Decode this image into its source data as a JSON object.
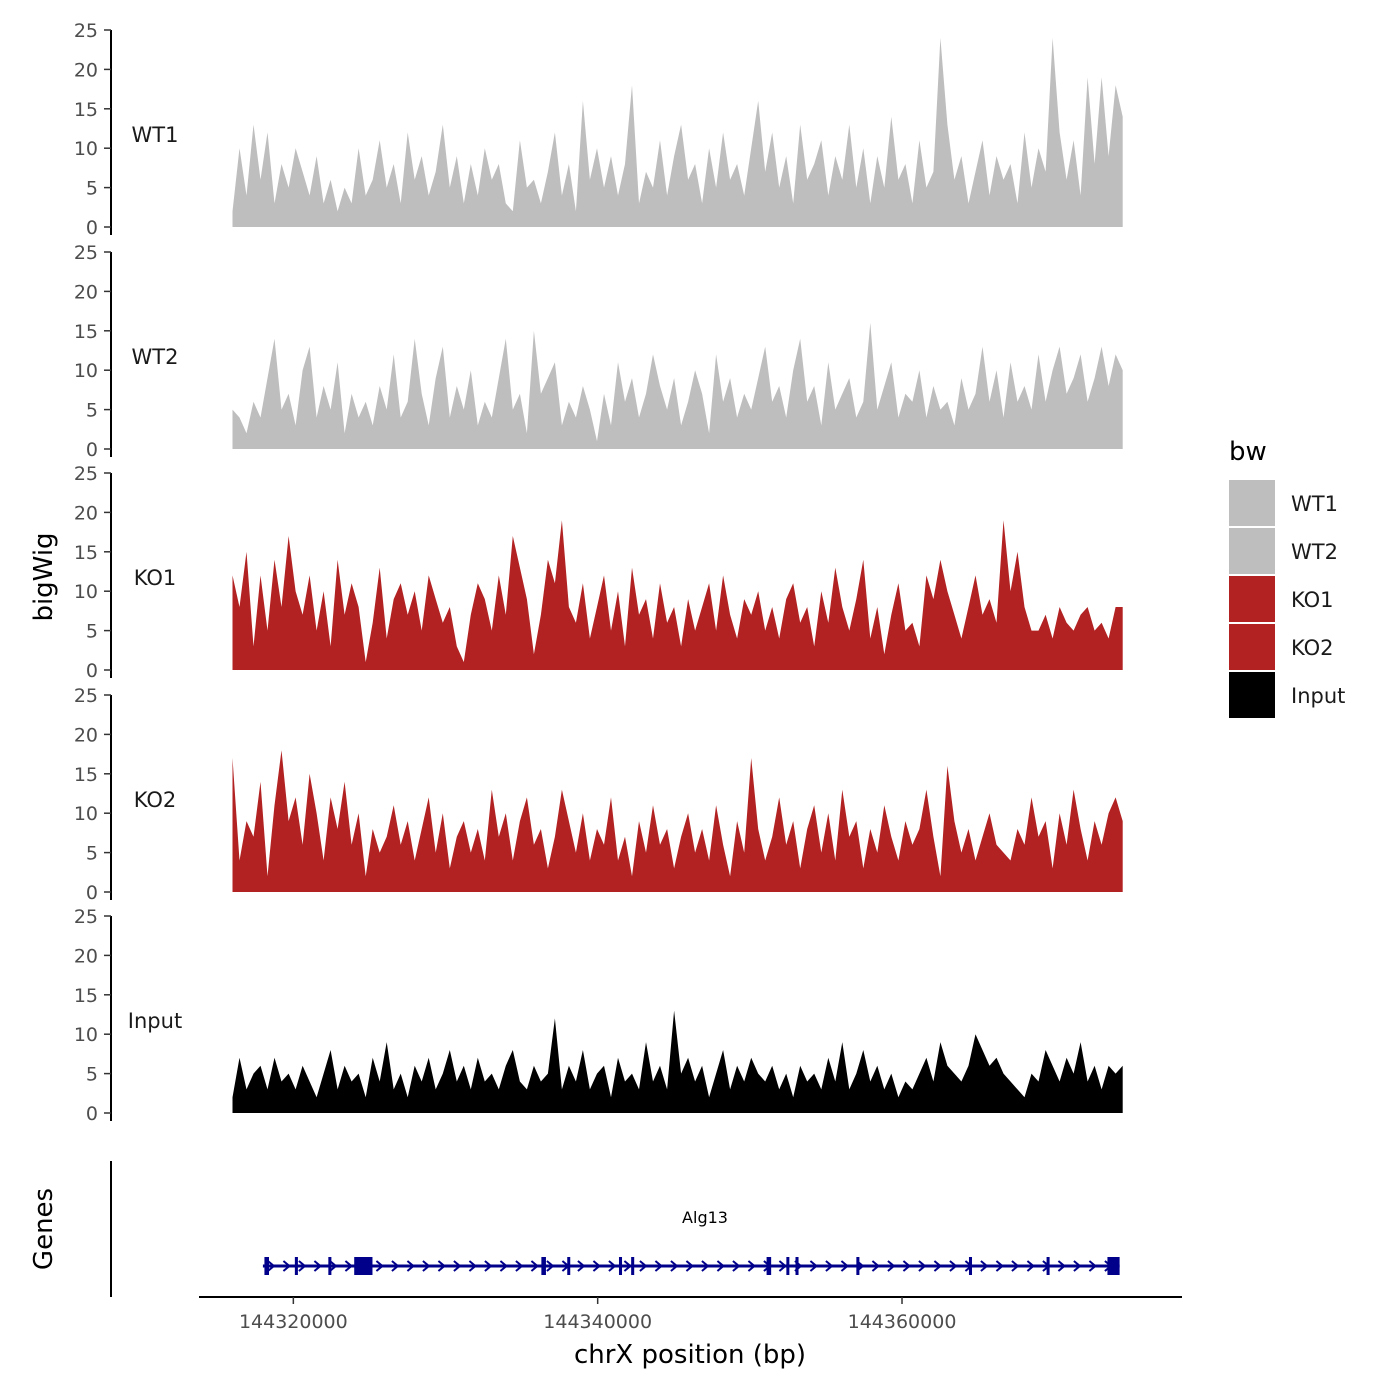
{
  "chart_data": {
    "type": "area",
    "title": "",
    "xlabel": "chrX position (bp)",
    "ylabel": "bigWig",
    "genes_label": "Genes",
    "xlim": [
      144313800,
      144378400
    ],
    "x_ticks": [
      144320000,
      144340000,
      144360000
    ],
    "x_tick_labels": [
      "144320000",
      "144340000",
      "144360000"
    ],
    "data_range": [
      144316000,
      144374500
    ],
    "ylim": [
      0,
      25
    ],
    "y_ticks": [
      0,
      5,
      10,
      15,
      20,
      25
    ],
    "y_tick_labels": [
      "0",
      "5",
      "10",
      "15",
      "20",
      "25"
    ],
    "legend": {
      "title": "bw",
      "entries": [
        {
          "label": "WT1",
          "color": "#bebebe"
        },
        {
          "label": "WT2",
          "color": "#bebebe"
        },
        {
          "label": "KO1",
          "color": "#b22222"
        },
        {
          "label": "KO2",
          "color": "#b22222"
        },
        {
          "label": "Input",
          "color": "#000000"
        }
      ]
    },
    "series": [
      {
        "name": "WT1",
        "color": "#bebebe",
        "values": [
          2,
          10,
          4,
          13,
          6,
          12,
          3,
          8,
          5,
          10,
          7,
          4,
          9,
          3,
          6,
          2,
          5,
          3,
          10,
          4,
          6,
          11,
          5,
          8,
          3,
          12,
          6,
          9,
          4,
          7,
          13,
          5,
          9,
          3,
          8,
          4,
          10,
          6,
          8,
          3,
          2,
          11,
          5,
          6,
          3,
          7,
          12,
          4,
          8,
          2,
          16,
          6,
          10,
          5,
          9,
          4,
          8,
          18,
          3,
          7,
          5,
          11,
          4,
          9,
          13,
          6,
          8,
          3,
          10,
          5,
          12,
          6,
          8,
          4,
          10,
          16,
          7,
          12,
          5,
          9,
          3,
          13,
          6,
          8,
          11,
          4,
          9,
          6,
          13,
          5,
          10,
          3,
          9,
          5,
          14,
          6,
          8,
          3,
          11,
          5,
          7,
          24,
          13,
          6,
          9,
          3,
          7,
          11,
          4,
          9,
          6,
          8,
          3,
          12,
          5,
          10,
          7,
          24,
          12,
          6,
          11,
          4,
          19,
          8,
          19,
          9,
          18,
          14
        ]
      },
      {
        "name": "WT2",
        "color": "#bebebe",
        "values": [
          5,
          4,
          2,
          6,
          4,
          9,
          14,
          5,
          7,
          3,
          10,
          13,
          4,
          8,
          5,
          11,
          2,
          7,
          4,
          6,
          3,
          8,
          5,
          12,
          4,
          6,
          14,
          7,
          3,
          9,
          13,
          4,
          8,
          5,
          10,
          3,
          6,
          4,
          9,
          14,
          5,
          7,
          2,
          15,
          7,
          9,
          11,
          3,
          6,
          4,
          8,
          5,
          1,
          7,
          3,
          11,
          6,
          9,
          4,
          7,
          12,
          8,
          5,
          9,
          3,
          6,
          10,
          7,
          2,
          12,
          6,
          9,
          4,
          7,
          5,
          9,
          13,
          6,
          8,
          4,
          10,
          14,
          6,
          8,
          3,
          11,
          5,
          7,
          9,
          4,
          6,
          16,
          5,
          8,
          11,
          4,
          7,
          6,
          10,
          4,
          8,
          5,
          6,
          3,
          9,
          5,
          7,
          13,
          6,
          10,
          4,
          11,
          6,
          8,
          5,
          12,
          6,
          10,
          13,
          7,
          9,
          12,
          6,
          9,
          13,
          8,
          12,
          10
        ]
      },
      {
        "name": "KO1",
        "color": "#b22222",
        "values": [
          12,
          8,
          15,
          3,
          12,
          5,
          14,
          8,
          17,
          10,
          7,
          12,
          5,
          10,
          3,
          14,
          7,
          11,
          8,
          1,
          6,
          13,
          4,
          9,
          11,
          7,
          10,
          5,
          12,
          9,
          6,
          8,
          3,
          1,
          7,
          11,
          9,
          5,
          12,
          7,
          17,
          13,
          9,
          2,
          7,
          14,
          11,
          19,
          8,
          6,
          11,
          4,
          8,
          12,
          5,
          10,
          3,
          13,
          7,
          9,
          4,
          11,
          6,
          8,
          3,
          9,
          5,
          8,
          11,
          5,
          12,
          7,
          4,
          9,
          7,
          10,
          5,
          8,
          4,
          9,
          11,
          6,
          8,
          3,
          10,
          6,
          13,
          8,
          5,
          9,
          14,
          4,
          8,
          2,
          7,
          11,
          5,
          6,
          3,
          12,
          9,
          14,
          10,
          7,
          4,
          8,
          12,
          7,
          9,
          6,
          19,
          10,
          15,
          8,
          5,
          5,
          7,
          4,
          8,
          6,
          5,
          7,
          8,
          5,
          6,
          4,
          8,
          8
        ]
      },
      {
        "name": "KO2",
        "color": "#b22222",
        "values": [
          17,
          4,
          9,
          7,
          14,
          2,
          11,
          18,
          9,
          12,
          6,
          15,
          10,
          4,
          12,
          8,
          14,
          6,
          10,
          2,
          8,
          5,
          7,
          11,
          6,
          9,
          4,
          8,
          12,
          5,
          10,
          3,
          7,
          9,
          5,
          8,
          4,
          13,
          7,
          10,
          4,
          9,
          12,
          6,
          8,
          3,
          7,
          13,
          9,
          5,
          10,
          4,
          8,
          6,
          12,
          4,
          7,
          2,
          9,
          5,
          11,
          6,
          8,
          3,
          7,
          10,
          5,
          8,
          4,
          11,
          6,
          2,
          9,
          5,
          17,
          8,
          4,
          7,
          12,
          6,
          9,
          3,
          8,
          11,
          5,
          10,
          4,
          13,
          7,
          9,
          3,
          8,
          5,
          11,
          7,
          4,
          9,
          6,
          8,
          13,
          7,
          2,
          16,
          9,
          5,
          8,
          4,
          7,
          10,
          6,
          5,
          4,
          8,
          6,
          12,
          7,
          9,
          3,
          10,
          6,
          13,
          8,
          4,
          9,
          6,
          10,
          12,
          9
        ]
      },
      {
        "name": "Input",
        "color": "#000000",
        "values": [
          2,
          7,
          3,
          5,
          6,
          3,
          7,
          4,
          5,
          3,
          6,
          4,
          2,
          5,
          8,
          3,
          6,
          4,
          5,
          2,
          7,
          4,
          9,
          3,
          5,
          2,
          6,
          4,
          7,
          3,
          5,
          8,
          4,
          6,
          3,
          7,
          4,
          5,
          3,
          6,
          8,
          4,
          3,
          6,
          4,
          5,
          12,
          3,
          6,
          4,
          8,
          3,
          5,
          6,
          2,
          7,
          4,
          5,
          3,
          9,
          4,
          6,
          3,
          13,
          5,
          7,
          4,
          6,
          2,
          5,
          8,
          3,
          6,
          4,
          7,
          5,
          4,
          6,
          3,
          5,
          2,
          6,
          4,
          5,
          3,
          7,
          4,
          9,
          3,
          5,
          8,
          4,
          6,
          3,
          5,
          2,
          4,
          3,
          5,
          7,
          4,
          9,
          6,
          5,
          4,
          6,
          10,
          8,
          6,
          7,
          5,
          4,
          3,
          2,
          5,
          4,
          8,
          6,
          4,
          7,
          5,
          9,
          4,
          6,
          3,
          6,
          5,
          6
        ]
      }
    ],
    "gene_track": {
      "gene": "Alg13",
      "strand": "+",
      "color": "#00008b",
      "start": 144318000,
      "end": 144374300,
      "exons": [
        {
          "start": 144318100,
          "end": 144318400
        },
        {
          "start": 144320100,
          "end": 144320300
        },
        {
          "start": 144322300,
          "end": 144322500
        },
        {
          "start": 144324000,
          "end": 144325200
        },
        {
          "start": 144336300,
          "end": 144336600
        },
        {
          "start": 144338000,
          "end": 144338150
        },
        {
          "start": 144341400,
          "end": 144341600
        },
        {
          "start": 144342200,
          "end": 144342400
        },
        {
          "start": 144351100,
          "end": 144351400
        },
        {
          "start": 144352400,
          "end": 144352500
        },
        {
          "start": 144353000,
          "end": 144353200
        },
        {
          "start": 144357000,
          "end": 144357200
        },
        {
          "start": 144364400,
          "end": 144364600
        },
        {
          "start": 144369500,
          "end": 144369700
        },
        {
          "start": 144373500,
          "end": 144374300
        }
      ]
    }
  }
}
